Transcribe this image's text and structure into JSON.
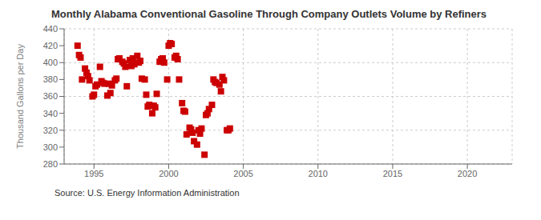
{
  "chart_data": {
    "type": "scatter",
    "title": "Monthly Alabama Conventional Gasoline Through Company Outlets Volume by Refiners",
    "ylabel": "Thousand Gallons per Day",
    "annotations": [
      "Source: U.S. Energy Information Administration"
    ],
    "color": "#cc0000",
    "marker": "square",
    "grid": true,
    "xlim": [
      1993,
      2023
    ],
    "ylim": [
      280,
      440
    ],
    "xticks": [
      1995,
      2000,
      2005,
      2010,
      2015,
      2020
    ],
    "yticks": [
      280,
      300,
      320,
      340,
      360,
      380,
      400,
      420,
      440
    ],
    "x": [
      1993.9,
      1994.0,
      1994.1,
      1994.2,
      1994.4,
      1994.5,
      1994.6,
      1994.7,
      1994.9,
      1995.0,
      1995.1,
      1995.2,
      1995.4,
      1995.5,
      1995.6,
      1995.7,
      1995.9,
      1996.0,
      1996.1,
      1996.2,
      1996.4,
      1996.5,
      1996.6,
      1996.7,
      1996.9,
      1997.0,
      1997.1,
      1997.2,
      1997.4,
      1997.5,
      1997.6,
      1997.7,
      1997.9,
      1998.0,
      1998.1,
      1998.2,
      1998.4,
      1998.5,
      1998.6,
      1998.7,
      1998.9,
      1999.0,
      1999.1,
      1999.2,
      1999.4,
      1999.5,
      1999.6,
      1999.7,
      1999.9,
      2000.0,
      2000.1,
      2000.2,
      2000.4,
      2000.5,
      2000.6,
      2000.7,
      2000.9,
      2001.0,
      2001.1,
      2001.2,
      2001.4,
      2001.5,
      2001.6,
      2001.7,
      2001.9,
      2002.0,
      2002.1,
      2002.2,
      2002.4,
      2002.5,
      2002.6,
      2002.7,
      2002.9,
      2003.0,
      2003.1,
      2003.2,
      2003.4,
      2003.5,
      2003.6,
      2003.7,
      2003.9,
      2004.0,
      2004.1
    ],
    "values": [
      420,
      409,
      406,
      380,
      393,
      388,
      384,
      379,
      360,
      362,
      372,
      374,
      395,
      378,
      376,
      375,
      361,
      375,
      364,
      373,
      379,
      381,
      404,
      405,
      401,
      399,
      395,
      372,
      403,
      396,
      405,
      398,
      408,
      400,
      402,
      381,
      380,
      362,
      348,
      350,
      340,
      349,
      347,
      363,
      401,
      404,
      405,
      400,
      380,
      420,
      423,
      422,
      406,
      408,
      404,
      380,
      352,
      343,
      342,
      315,
      323,
      321,
      317,
      307,
      303,
      320,
      316,
      322,
      291,
      338,
      340,
      345,
      350,
      380,
      377,
      376,
      374,
      366,
      383,
      379,
      320,
      320,
      322
    ]
  }
}
